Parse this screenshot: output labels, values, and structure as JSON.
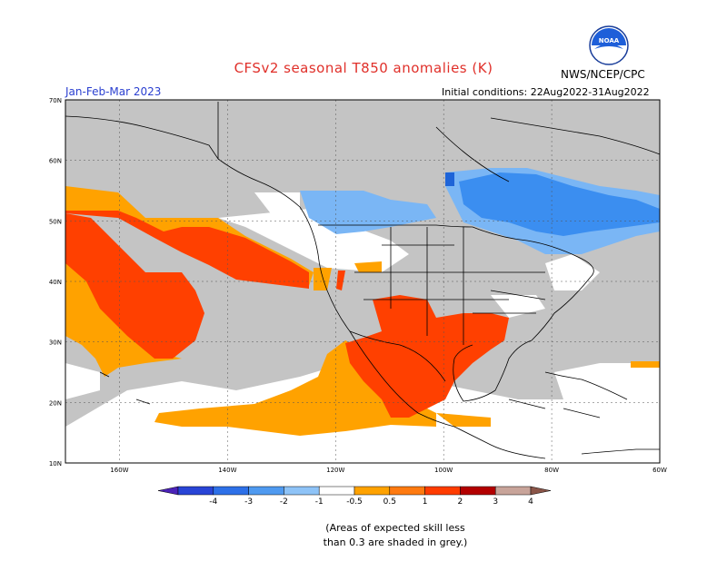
{
  "header": {
    "title": "CFSv2 seasonal T850 anomalies (K)",
    "season": "Jan-Feb-Mar 2023",
    "initial_conditions": "Initial conditions: 22Aug2022-31Aug2022",
    "org": "NWS/NCEP/CPC",
    "logo_text": "NOAA"
  },
  "map": {
    "lat_labels": [
      "70N",
      "60N",
      "50N",
      "40N",
      "30N",
      "20N",
      "10N"
    ],
    "lat_values": [
      70,
      60,
      50,
      40,
      30,
      20,
      10
    ],
    "lon_labels": [
      "160W",
      "140W",
      "120W",
      "100W",
      "80W",
      "60W"
    ],
    "lon_values": [
      -160,
      -140,
      -120,
      -100,
      -80,
      -60
    ],
    "lat_range": [
      10,
      70
    ],
    "lon_range": [
      -170,
      -60
    ],
    "colors": {
      "no_skill": "#c4c4c4",
      "neg_0_5_1": "#7ab6f5",
      "neg_1_2": "#3b8ef0",
      "neg_2_3": "#1e64d8",
      "pos_0_5_1": "#ffa200",
      "pos_1_2": "#ff4000",
      "land_outline": "#000000"
    }
  },
  "colorbar": {
    "labels": [
      "-4",
      "-3",
      "-2",
      "-1",
      "-0.5",
      "0.5",
      "1",
      "2",
      "3",
      "4"
    ],
    "colors": [
      "#4b22b8",
      "#2844d6",
      "#2d70e8",
      "#4f9af0",
      "#8ec3f7",
      "#ffffff",
      "#ffa200",
      "#ff7a10",
      "#ff3c00",
      "#b30000",
      "#c8a49a",
      "#8a5548"
    ]
  },
  "footnote": {
    "line1": "(Areas of expected skill less",
    "line2": "than 0.3 are shaded in grey.)"
  }
}
